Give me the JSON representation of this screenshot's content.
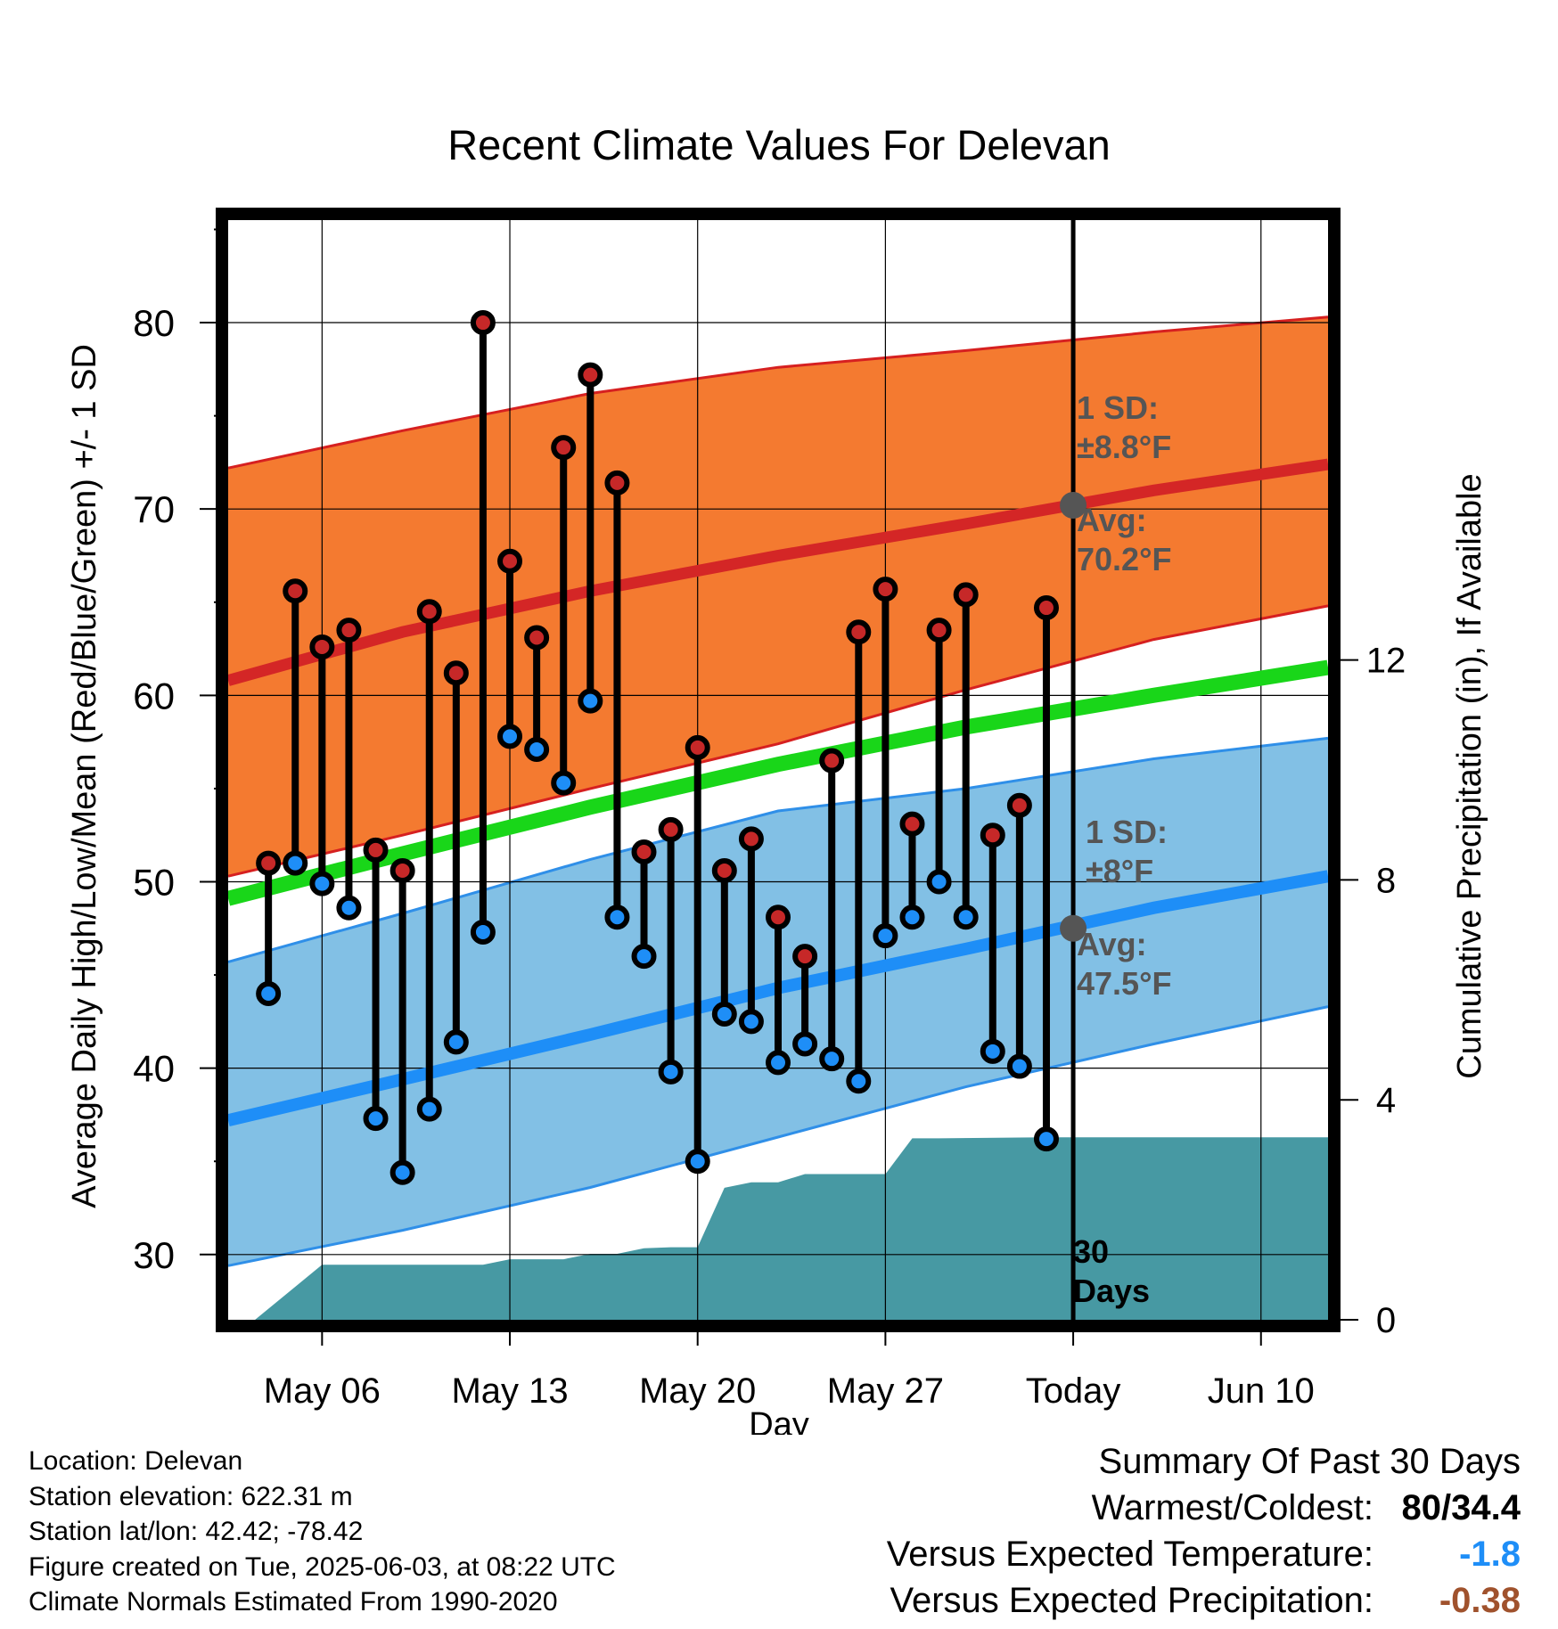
{
  "chart_data": {
    "type": "line",
    "title": "Recent Climate Values For Delevan",
    "xlabel": "Day",
    "ylabel": "Average Daily High/Low/Mean (Red/Blue/Green) +/- 1 SD",
    "y2label": "Cumulative Precipitation (in), If Available",
    "x_tick_labels": [
      "May 06",
      "May 13",
      "May 20",
      "May 27",
      "Today",
      "Jun 10"
    ],
    "x_ticks": [
      "2025-05-06",
      "2025-05-13",
      "2025-05-20",
      "2025-05-27",
      "2025-06-03",
      "2025-06-10"
    ],
    "xlim": [
      "2025-05-02T12:00",
      "2025-06-12T12:00"
    ],
    "ylim": [
      26.5,
      85.5
    ],
    "y_ticks": [
      30,
      40,
      50,
      60,
      70,
      80
    ],
    "y2lim": [
      0,
      20
    ],
    "y2_ticks": [
      0,
      4,
      8,
      12
    ],
    "grid": true,
    "today": "2025-06-03",
    "period_label": "30 Days",
    "dates": [
      "2025-05-04",
      "2025-05-05",
      "2025-05-06",
      "2025-05-07",
      "2025-05-08",
      "2025-05-09",
      "2025-05-10",
      "2025-05-11",
      "2025-05-12",
      "2025-05-13",
      "2025-05-14",
      "2025-05-15",
      "2025-05-16",
      "2025-05-17",
      "2025-05-18",
      "2025-05-19",
      "2025-05-20",
      "2025-05-21",
      "2025-05-22",
      "2025-05-23",
      "2025-05-24",
      "2025-05-25",
      "2025-05-26",
      "2025-05-27",
      "2025-05-28",
      "2025-05-29",
      "2025-05-30",
      "2025-05-31",
      "2025-06-01",
      "2025-06-02"
    ],
    "daily_high": [
      51.0,
      65.6,
      62.6,
      63.5,
      51.7,
      50.6,
      64.5,
      61.2,
      80.0,
      67.2,
      63.1,
      73.3,
      77.2,
      71.4,
      51.6,
      52.8,
      57.2,
      50.6,
      52.3,
      48.1,
      46.0,
      56.5,
      63.4,
      65.7,
      53.1,
      63.5,
      65.4,
      52.5,
      54.1,
      64.7
    ],
    "daily_low": [
      44.0,
      51.0,
      49.9,
      48.6,
      37.3,
      34.4,
      37.8,
      41.4,
      47.3,
      57.8,
      57.1,
      55.3,
      59.7,
      48.1,
      46.0,
      39.8,
      35.0,
      42.9,
      42.5,
      40.3,
      41.3,
      40.5,
      39.3,
      47.1,
      48.1,
      50.0,
      48.1,
      40.9,
      40.1,
      36.2
    ],
    "normals": {
      "dates": [
        "2025-05-02T12:00",
        "2025-05-09",
        "2025-05-16",
        "2025-05-23",
        "2025-05-30",
        "2025-06-06",
        "2025-06-12T12:00"
      ],
      "high_avg": [
        60.8,
        63.4,
        65.6,
        67.5,
        69.2,
        71.0,
        72.4
      ],
      "high_sd_upper": [
        72.2,
        74.2,
        76.2,
        77.6,
        78.5,
        79.5,
        80.3
      ],
      "high_sd_lower": [
        50.3,
        52.5,
        55.0,
        57.4,
        60.3,
        63.0,
        64.8
      ],
      "mean_avg": [
        49.1,
        51.5,
        54.0,
        56.3,
        58.3,
        60.0,
        61.5
      ],
      "low_avg": [
        37.2,
        39.4,
        41.8,
        44.3,
        46.4,
        48.6,
        50.3
      ],
      "low_sd_upper": [
        45.7,
        48.3,
        51.2,
        53.8,
        55.0,
        56.6,
        57.7
      ],
      "low_sd_lower": [
        29.4,
        31.3,
        33.6,
        36.3,
        39.0,
        41.3,
        43.3
      ]
    },
    "cumulative_precipitation": {
      "dates": [
        "2025-05-02T12:00",
        "2025-05-03T12:00",
        "2025-05-05",
        "2025-05-06",
        "2025-05-08",
        "2025-05-10",
        "2025-05-12",
        "2025-05-13",
        "2025-05-15",
        "2025-05-16",
        "2025-05-17",
        "2025-05-18",
        "2025-05-19",
        "2025-05-20",
        "2025-05-21",
        "2025-05-22",
        "2025-05-23",
        "2025-05-24",
        "2025-05-25",
        "2025-05-26",
        "2025-05-27",
        "2025-05-28",
        "2025-05-29",
        "2025-06-02",
        "2025-06-12T12:00"
      ],
      "values": [
        0,
        0,
        0.6,
        1.0,
        1.0,
        1.0,
        1.0,
        1.1,
        1.1,
        1.2,
        1.2,
        1.3,
        1.32,
        1.32,
        2.4,
        2.5,
        2.5,
        2.65,
        2.65,
        2.65,
        2.65,
        3.3,
        3.3,
        3.32,
        3.32
      ]
    },
    "annotations": {
      "high_sd_label": "1 SD:",
      "high_sd_value": "±8.8°F",
      "high_avg_label": "Avg:",
      "high_avg_value": "70.2°F",
      "high_avg_today": 70.2,
      "low_sd_label": "1 SD:",
      "low_sd_value": "±8°F",
      "low_avg_label": "Avg:",
      "low_avg_value": "47.5°F",
      "low_avg_today": 47.5
    },
    "colors": {
      "high_band": "#f47a30",
      "high_edge": "#d62020",
      "high_line": "#d42626",
      "low_band": "#82c0e5",
      "low_edge": "#2f8fe8",
      "low_line": "#1e8ef7",
      "mean_line": "#19d619",
      "precip": "#4799a3",
      "high_marker": "#c62828",
      "low_marker": "#1e8ef7",
      "annotation_text": "#555555"
    }
  },
  "footer": {
    "location": "Location: Delevan",
    "elevation": "Station elevation: 622.31 m",
    "latlon": "Station lat/lon: 42.42; -78.42",
    "created": "Figure created on Tue, 2025-06-03, at 08:22 UTC",
    "normals": "Climate Normals Estimated From 1990-2020"
  },
  "summary": {
    "title": "Summary Of Past 30 Days",
    "warm_cold_label": "Warmest/Coldest:",
    "warm_cold_value": "80/34.4",
    "temp_label": "Versus Expected Temperature:",
    "temp_value": "-1.8",
    "temp_color": "#1e8ef7",
    "precip_label": "Versus Expected Precipitation:",
    "precip_value": "-0.38",
    "precip_color": "#a0522d"
  }
}
